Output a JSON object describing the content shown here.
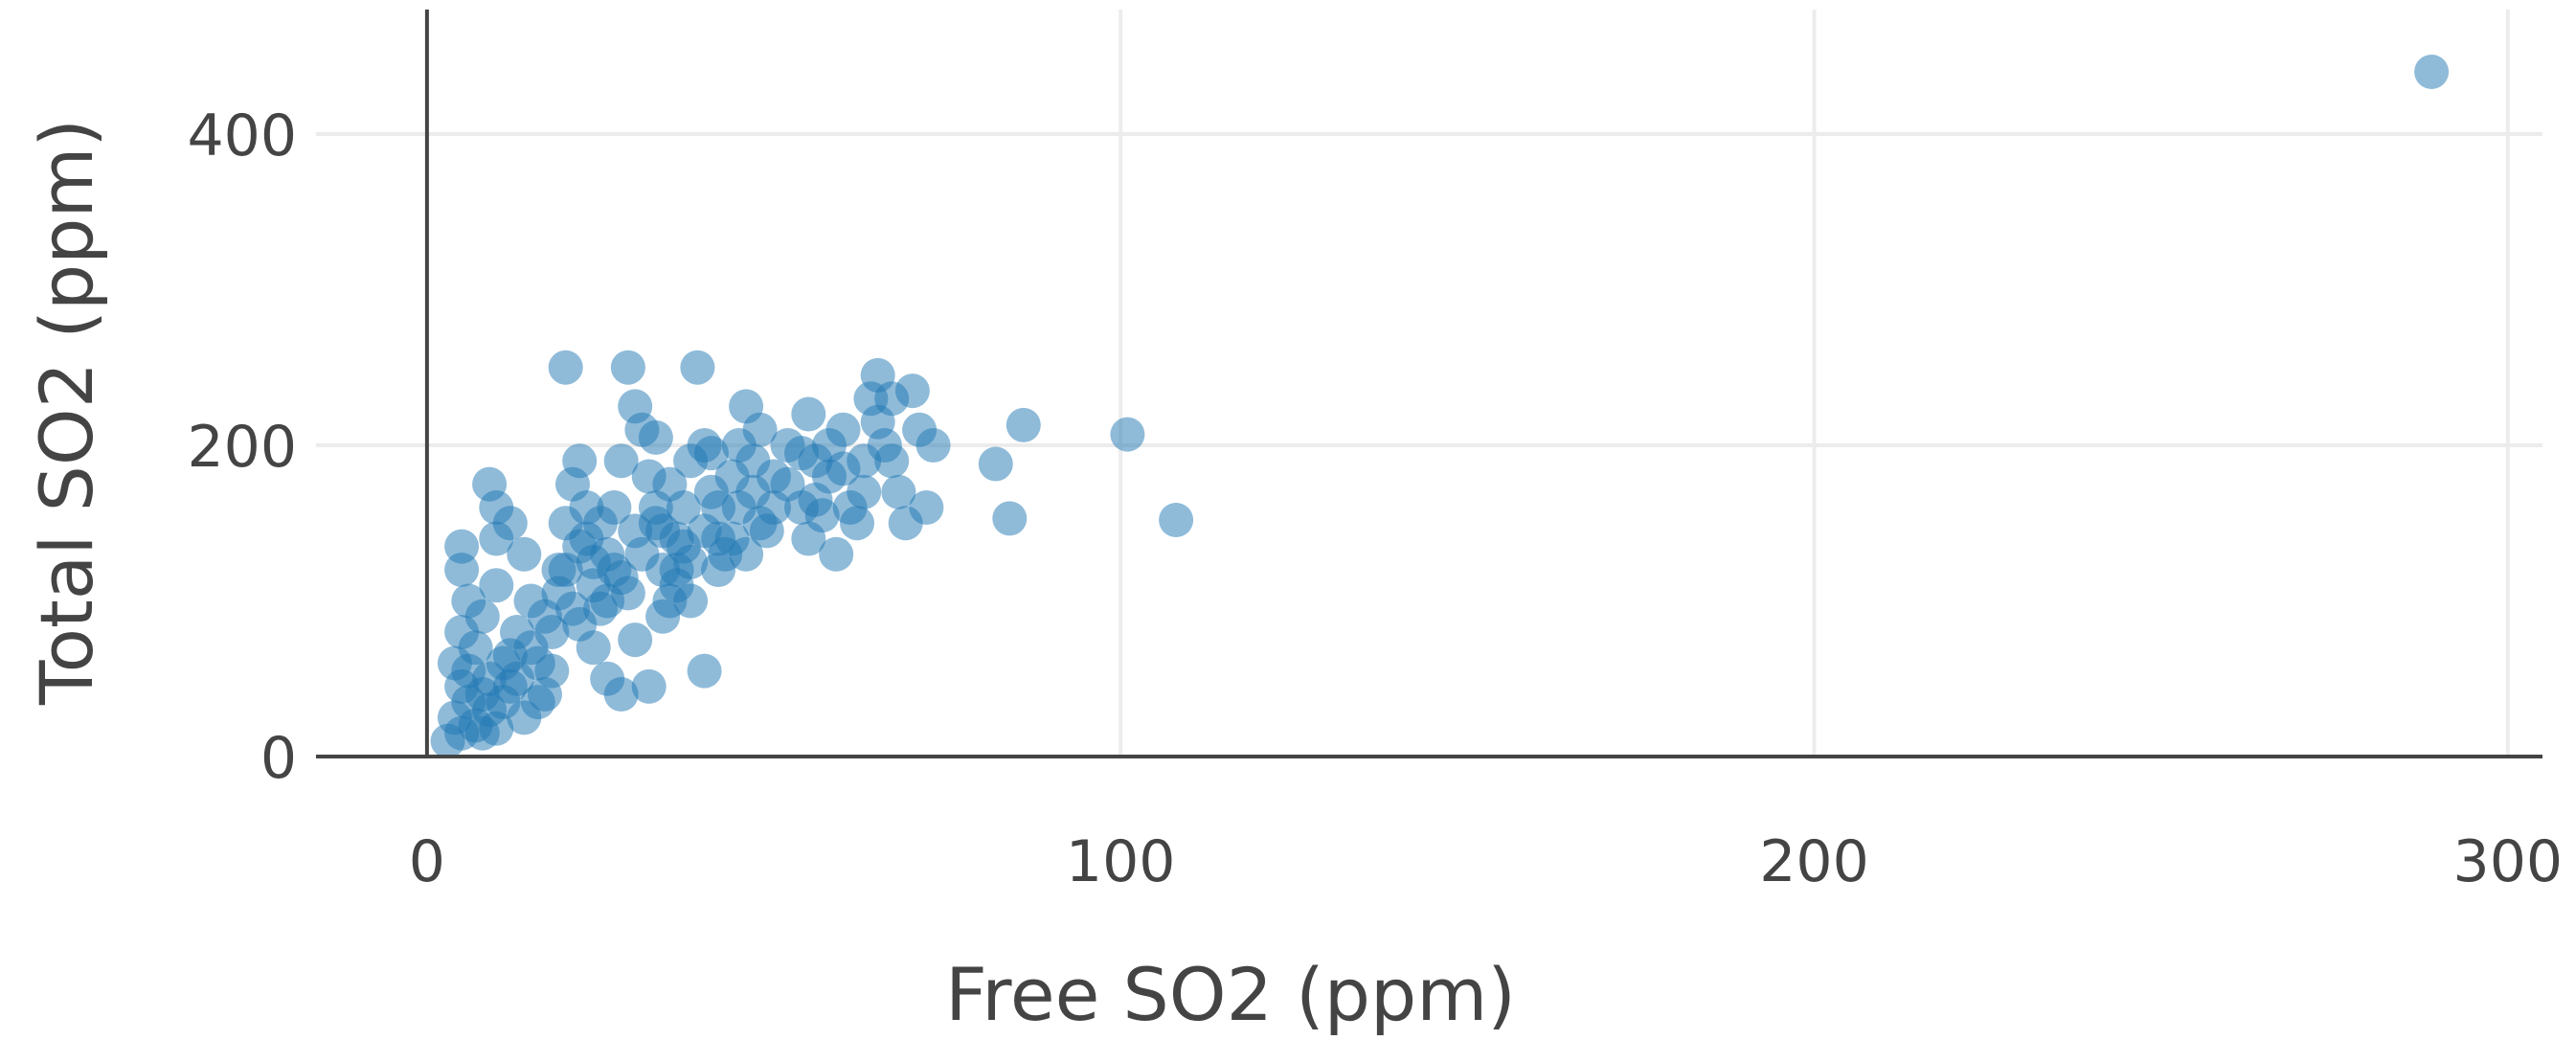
{
  "chart_data": {
    "type": "scatter",
    "xlabel": "Free SO2 (ppm)",
    "ylabel": "Total SO2 (ppm)",
    "xlim": [
      -16,
      305
    ],
    "ylim": [
      0,
      480
    ],
    "x_ticks": [
      0,
      100,
      200,
      300
    ],
    "y_ticks": [
      0,
      200,
      400
    ],
    "grid": true,
    "legend": "none",
    "marker_color": "#1f77b4",
    "marker_opacity": 0.5,
    "series": [
      {
        "points": [
          [
            3,
            10
          ],
          [
            4,
            25
          ],
          [
            5,
            15
          ],
          [
            6,
            35
          ],
          [
            5,
            45
          ],
          [
            7,
            20
          ],
          [
            8,
            40
          ],
          [
            6,
            55
          ],
          [
            9,
            30
          ],
          [
            10,
            18
          ],
          [
            4,
            60
          ],
          [
            5,
            80
          ],
          [
            6,
            100
          ],
          [
            5,
            120
          ],
          [
            5,
            135
          ],
          [
            7,
            70
          ],
          [
            8,
            90
          ],
          [
            10,
            110
          ],
          [
            11,
            60
          ],
          [
            12,
            45
          ],
          [
            13,
            80
          ],
          [
            14,
            130
          ],
          [
            12,
            150
          ],
          [
            10,
            160
          ],
          [
            9,
            175
          ],
          [
            10,
            140
          ],
          [
            15,
            100
          ],
          [
            16,
            60
          ],
          [
            17,
            40
          ],
          [
            18,
            80
          ],
          [
            19,
            120
          ],
          [
            20,
            150
          ],
          [
            21,
            175
          ],
          [
            20,
            250
          ],
          [
            22,
            190
          ],
          [
            23,
            140
          ],
          [
            24,
            110
          ],
          [
            25,
            95
          ],
          [
            26,
            130
          ],
          [
            27,
            160
          ],
          [
            28,
            190
          ],
          [
            29,
            250
          ],
          [
            30,
            225
          ],
          [
            31,
            210
          ],
          [
            32,
            180
          ],
          [
            33,
            150
          ],
          [
            34,
            120
          ],
          [
            35,
            100
          ],
          [
            36,
            140
          ],
          [
            37,
            160
          ],
          [
            38,
            190
          ],
          [
            39,
            250
          ],
          [
            40,
            200
          ],
          [
            41,
            170
          ],
          [
            42,
            140
          ],
          [
            43,
            130
          ],
          [
            44,
            180
          ],
          [
            45,
            200
          ],
          [
            46,
            225
          ],
          [
            47,
            190
          ],
          [
            48,
            210
          ],
          [
            50,
            180
          ],
          [
            52,
            200
          ],
          [
            54,
            160
          ],
          [
            55,
            220
          ],
          [
            56,
            190
          ],
          [
            58,
            180
          ],
          [
            60,
            210
          ],
          [
            62,
            150
          ],
          [
            63,
            170
          ],
          [
            64,
            230
          ],
          [
            65,
            245
          ],
          [
            66,
            200
          ],
          [
            67,
            230
          ],
          [
            68,
            170
          ],
          [
            69,
            150
          ],
          [
            70,
            235
          ],
          [
            71,
            210
          ],
          [
            72,
            160
          ],
          [
            73,
            200
          ],
          [
            24,
            70
          ],
          [
            26,
            50
          ],
          [
            28,
            40
          ],
          [
            30,
            75
          ],
          [
            32,
            45
          ],
          [
            34,
            90
          ],
          [
            36,
            110
          ],
          [
            38,
            100
          ],
          [
            40,
            55
          ],
          [
            42,
            120
          ],
          [
            44,
            140
          ],
          [
            46,
            130
          ],
          [
            48,
            150
          ],
          [
            22,
            85
          ],
          [
            18,
            55
          ],
          [
            16,
            35
          ],
          [
            14,
            25
          ],
          [
            12,
            65
          ],
          [
            20,
            120
          ],
          [
            22,
            135
          ],
          [
            25,
            150
          ],
          [
            27,
            120
          ],
          [
            29,
            105
          ],
          [
            31,
            130
          ],
          [
            33,
            160
          ],
          [
            35,
            175
          ],
          [
            37,
            135
          ],
          [
            30,
            145
          ],
          [
            28,
            115
          ],
          [
            26,
            100
          ],
          [
            24,
            125
          ],
          [
            23,
            160
          ],
          [
            34,
            145
          ],
          [
            36,
            120
          ],
          [
            38,
            125
          ],
          [
            40,
            145
          ],
          [
            42,
            160
          ],
          [
            45,
            160
          ],
          [
            47,
            170
          ],
          [
            50,
            160
          ],
          [
            52,
            175
          ],
          [
            54,
            195
          ],
          [
            56,
            165
          ],
          [
            58,
            200
          ],
          [
            60,
            185
          ],
          [
            61,
            160
          ],
          [
            63,
            190
          ],
          [
            65,
            215
          ],
          [
            67,
            190
          ],
          [
            8,
            15
          ],
          [
            9,
            50
          ],
          [
            11,
            35
          ],
          [
            13,
            50
          ],
          [
            15,
            70
          ],
          [
            17,
            90
          ],
          [
            19,
            105
          ],
          [
            21,
            95
          ],
          [
            33,
            205
          ],
          [
            41,
            195
          ],
          [
            49,
            145
          ],
          [
            55,
            140
          ],
          [
            57,
            155
          ],
          [
            59,
            130
          ],
          [
            82,
            188
          ],
          [
            84,
            153
          ],
          [
            86,
            213
          ],
          [
            101,
            207
          ],
          [
            108,
            152
          ],
          [
            289,
            440
          ]
        ]
      }
    ]
  }
}
